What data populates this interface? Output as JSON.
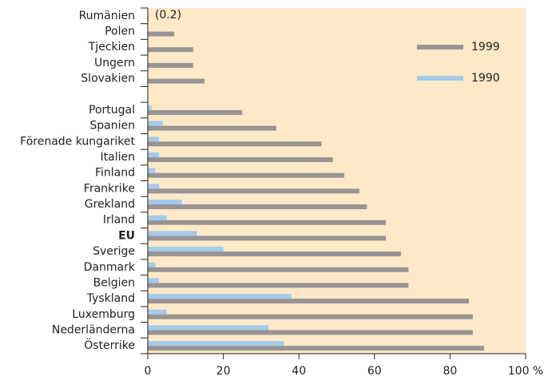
{
  "chart_data": {
    "type": "hbar",
    "categories": [
      "Rumänien",
      "Polen",
      "Tjeckien",
      "Ungern",
      "Slovakien",
      null,
      "Portugal",
      "Spanien",
      "Förenade kungariket",
      "Italien",
      "Finland",
      "Frankrike",
      "Grekland",
      "Irland",
      "EU",
      "Sverige",
      "Danmark",
      "Belgien",
      "Tyskland",
      "Luxemburg",
      "Nederländerna",
      "Österrike"
    ],
    "series": [
      {
        "name": "1999",
        "color": "#999494",
        "values": [
          0.2,
          7,
          12,
          12,
          15,
          null,
          25,
          34,
          46,
          49,
          52,
          56,
          58,
          63,
          63,
          67,
          69,
          69,
          85,
          86,
          86,
          89
        ],
        "value_labels": [
          "(0.2)",
          null,
          null,
          null,
          null,
          null,
          null,
          null,
          null,
          null,
          null,
          null,
          null,
          null,
          null,
          null,
          null,
          null,
          null,
          null,
          null,
          null
        ]
      },
      {
        "name": "1990",
        "color": "#a3cbea",
        "values": [
          null,
          null,
          null,
          null,
          null,
          null,
          1,
          4,
          3,
          3,
          2,
          3,
          9,
          5,
          13,
          20,
          2,
          3,
          38,
          5,
          32,
          36
        ]
      }
    ],
    "xlim": [
      0,
      100
    ],
    "xticks": [
      0,
      20,
      40,
      60,
      80,
      {
        "value": 100,
        "label": "100 %"
      }
    ],
    "bold_category": "EU",
    "background": "#fde9c8"
  }
}
